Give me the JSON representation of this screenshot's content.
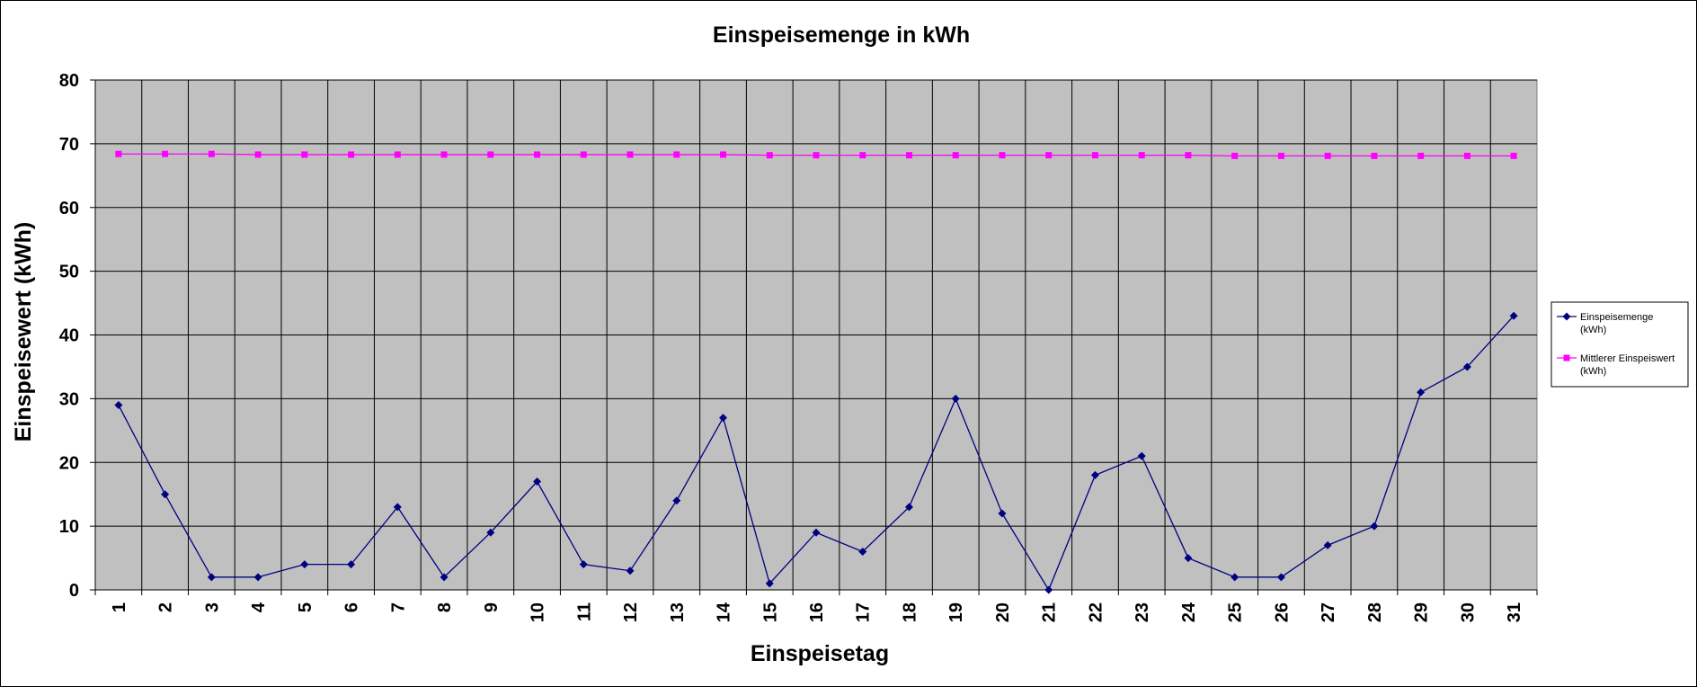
{
  "chart_data": {
    "type": "line",
    "title": "Einspeisemenge in kWh",
    "xlabel": "Einspeisetag",
    "ylabel": "Einspeisewert  (kWh)",
    "ylim": [
      0,
      80
    ],
    "y_ticks": [
      "0",
      "10",
      "20",
      "30",
      "40",
      "50",
      "60",
      "70",
      "80"
    ],
    "categories": [
      "1",
      "2",
      "3",
      "4",
      "5",
      "6",
      "7",
      "8",
      "9",
      "10",
      "11",
      "12",
      "13",
      "14",
      "15",
      "16",
      "17",
      "18",
      "19",
      "20",
      "21",
      "22",
      "23",
      "24",
      "25",
      "26",
      "27",
      "28",
      "29",
      "30",
      "31"
    ],
    "grid": true,
    "legend_position": "right",
    "plot_background": "#c0c0c0",
    "series": [
      {
        "name": "Einspeisemenge (kWh)",
        "legend_lines": [
          "Einspeisemenge",
          "(kWh)"
        ],
        "color": "#000080",
        "marker": "diamond",
        "values": [
          29,
          15,
          2,
          2,
          4,
          4,
          13,
          2,
          9,
          17,
          4,
          3,
          14,
          27,
          1,
          9,
          6,
          13,
          30,
          12,
          0,
          18,
          21,
          5,
          2,
          2,
          7,
          10,
          31,
          35,
          43
        ]
      },
      {
        "name": "Mittlerer Einspeiswert (kWh)",
        "legend_lines": [
          "Mittlerer Einspeiswert",
          "(kWh)"
        ],
        "color": "#ff00ff",
        "marker": "square",
        "values": [
          68.4,
          68.4,
          68.4,
          68.3,
          68.3,
          68.3,
          68.3,
          68.3,
          68.3,
          68.3,
          68.3,
          68.3,
          68.3,
          68.3,
          68.2,
          68.2,
          68.2,
          68.2,
          68.2,
          68.2,
          68.2,
          68.2,
          68.2,
          68.2,
          68.1,
          68.1,
          68.1,
          68.1,
          68.1,
          68.1,
          68.1
        ]
      }
    ]
  }
}
